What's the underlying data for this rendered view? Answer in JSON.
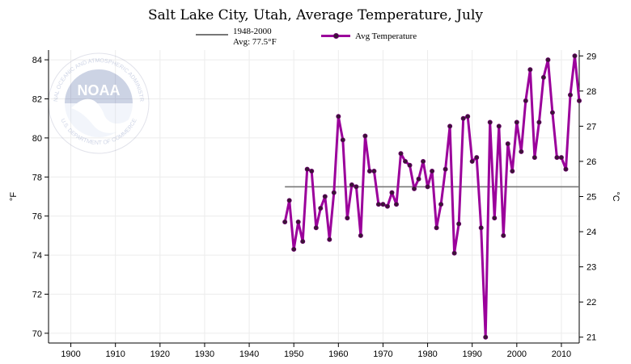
{
  "chart_data": {
    "type": "line",
    "title": "Salt Lake City, Utah, Average Temperature, July",
    "legend": {
      "baseline_label": "1948-2000",
      "baseline_avg_label": "Avg: 77.5°F",
      "series_label": "Avg Temperature"
    },
    "ylabel": "°F",
    "ylabel_right": "°C",
    "xlim": [
      1895,
      2014
    ],
    "ylim": [
      69.5,
      84.5
    ],
    "x_ticks": [
      1900,
      1910,
      1920,
      1930,
      1940,
      1950,
      1960,
      1970,
      1980,
      1990,
      2000,
      2010
    ],
    "y_ticks": [
      70,
      72,
      74,
      76,
      78,
      80,
      82,
      84
    ],
    "y2_ticks": [
      21,
      22,
      23,
      24,
      25,
      26,
      27,
      28,
      29
    ],
    "baseline": {
      "x_start": 1948,
      "x_end": 2014,
      "value": 77.5
    },
    "series": [
      {
        "name": "Avg Temperature",
        "color": "#9b009b",
        "marker_color": "#3a1535",
        "x": [
          1948,
          1949,
          1950,
          1951,
          1952,
          1953,
          1954,
          1955,
          1956,
          1957,
          1958,
          1959,
          1960,
          1961,
          1962,
          1963,
          1964,
          1965,
          1966,
          1967,
          1968,
          1969,
          1970,
          1971,
          1972,
          1973,
          1974,
          1975,
          1976,
          1977,
          1978,
          1979,
          1980,
          1981,
          1982,
          1983,
          1984,
          1985,
          1986,
          1987,
          1988,
          1989,
          1990,
          1991,
          1992,
          1993,
          1994,
          1995,
          1996,
          1997,
          1998,
          1999,
          2000,
          2001,
          2002,
          2003,
          2004,
          2005,
          2006,
          2007,
          2008,
          2009,
          2010,
          2011,
          2012,
          2013,
          2014
        ],
        "values": [
          75.7,
          76.8,
          74.3,
          75.7,
          74.7,
          78.4,
          78.3,
          75.4,
          76.4,
          77.0,
          74.8,
          77.2,
          81.1,
          79.9,
          75.9,
          77.6,
          77.5,
          75.0,
          80.1,
          78.3,
          78.3,
          76.6,
          76.6,
          76.5,
          77.2,
          76.6,
          79.2,
          78.8,
          78.6,
          77.4,
          77.9,
          78.8,
          77.5,
          78.3,
          75.4,
          76.6,
          78.4,
          80.6,
          74.1,
          75.6,
          81.0,
          81.1,
          78.8,
          79.0,
          75.4,
          69.8,
          80.8,
          75.9,
          80.6,
          75.0,
          79.7,
          78.3,
          80.8,
          79.3,
          81.9,
          83.5,
          79.0,
          80.8,
          83.1,
          84.0,
          81.3,
          79.0,
          79.0,
          78.4,
          82.2,
          84.2,
          81.9
        ]
      }
    ],
    "grid": true
  },
  "logo": {
    "name": "NOAA",
    "text": "NOAA",
    "ring_text_top": "NATIONAL OCEANIC AND ATMOSPHERIC ADMINISTRATION",
    "ring_text_bottom": "U.S. DEPARTMENT OF COMMERCE",
    "color": "#1e5aa8"
  }
}
